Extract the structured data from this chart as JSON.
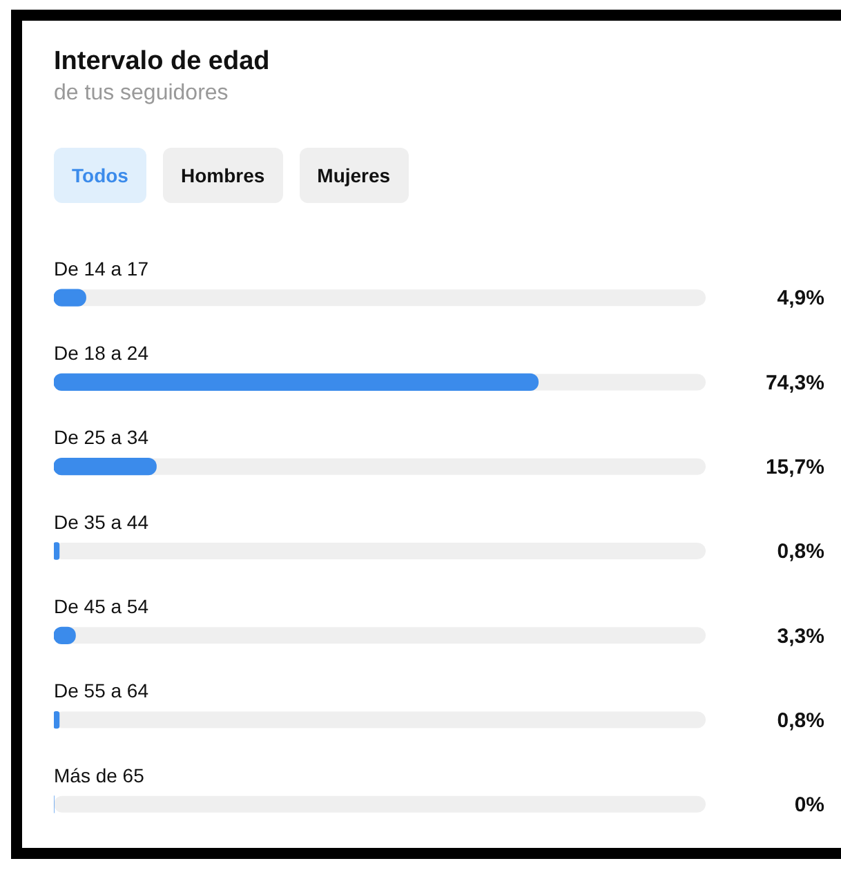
{
  "chart_data": {
    "type": "bar",
    "orientation": "horizontal",
    "title": "Intervalo de edad",
    "subtitle": "de tus seguidores",
    "annotations": [
      "Todos",
      "Hombres",
      "Mujeres"
    ],
    "categories": [
      "De 14 a 17",
      "De 18 a 24",
      "De 25 a 34",
      "De 35 a 44",
      "De 45 a 54",
      "De 55 a 64",
      "Más de 65"
    ],
    "values": [
      4.9,
      74.3,
      15.7,
      0.8,
      3.3,
      0.8,
      0
    ],
    "value_labels": [
      "4,9%",
      "74,3%",
      "15,7%",
      "0,8%",
      "3,3%",
      "0,8%",
      "0%"
    ],
    "color": "#3b8beb",
    "xlim": [
      0,
      100
    ],
    "tick_labels": false
  }
}
